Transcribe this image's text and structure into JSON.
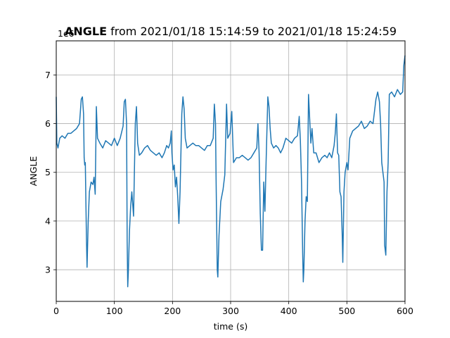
{
  "chart_data": {
    "type": "line",
    "title_bold": "ANGLE",
    "title_rest": " from 2021/01/18 15:14:59 to 2021/01/18 15:24:59",
    "xlabel": "time (s)",
    "ylabel": "ANGLE",
    "y_offset_text": "1e6",
    "xlim": [
      0,
      600
    ],
    "ylim": [
      2350000,
      7700000
    ],
    "x_ticks": [
      0,
      100,
      200,
      300,
      400,
      500,
      600
    ],
    "y_ticks": [
      3,
      4,
      5,
      6,
      7
    ],
    "grid": true,
    "series": [
      {
        "color": "#1f77b4",
        "points": [
          [
            0,
            6550000
          ],
          [
            1,
            5600000
          ],
          [
            3,
            5500000
          ],
          [
            6,
            5700000
          ],
          [
            10,
            5750000
          ],
          [
            15,
            5700000
          ],
          [
            20,
            5800000
          ],
          [
            25,
            5800000
          ],
          [
            30,
            5850000
          ],
          [
            35,
            5900000
          ],
          [
            40,
            6000000
          ],
          [
            43,
            6500000
          ],
          [
            45,
            6550000
          ],
          [
            47,
            6200000
          ],
          [
            48,
            5300000
          ],
          [
            49,
            5150000
          ],
          [
            50,
            5200000
          ],
          [
            51,
            4400000
          ],
          [
            52,
            3600000
          ],
          [
            53,
            3050000
          ],
          [
            55,
            4000000
          ],
          [
            57,
            4600000
          ],
          [
            60,
            4800000
          ],
          [
            63,
            4750000
          ],
          [
            65,
            4900000
          ],
          [
            67,
            4550000
          ],
          [
            69,
            6350000
          ],
          [
            71,
            5700000
          ],
          [
            75,
            5600000
          ],
          [
            80,
            5500000
          ],
          [
            85,
            5650000
          ],
          [
            90,
            5600000
          ],
          [
            95,
            5550000
          ],
          [
            100,
            5700000
          ],
          [
            105,
            5550000
          ],
          [
            110,
            5700000
          ],
          [
            115,
            5950000
          ],
          [
            117,
            6450000
          ],
          [
            119,
            6500000
          ],
          [
            121,
            6000000
          ],
          [
            122,
            3600000
          ],
          [
            123,
            2650000
          ],
          [
            124,
            2950000
          ],
          [
            126,
            3800000
          ],
          [
            128,
            4300000
          ],
          [
            130,
            4600000
          ],
          [
            133,
            4100000
          ],
          [
            136,
            6000000
          ],
          [
            138,
            6350000
          ],
          [
            140,
            5600000
          ],
          [
            143,
            5350000
          ],
          [
            147,
            5400000
          ],
          [
            152,
            5500000
          ],
          [
            157,
            5550000
          ],
          [
            162,
            5450000
          ],
          [
            167,
            5400000
          ],
          [
            172,
            5350000
          ],
          [
            177,
            5400000
          ],
          [
            182,
            5300000
          ],
          [
            186,
            5400000
          ],
          [
            190,
            5550000
          ],
          [
            193,
            5500000
          ],
          [
            196,
            5600000
          ],
          [
            198,
            5850000
          ],
          [
            199,
            5400000
          ],
          [
            201,
            5050000
          ],
          [
            203,
            5150000
          ],
          [
            205,
            4700000
          ],
          [
            207,
            4900000
          ],
          [
            209,
            4500000
          ],
          [
            211,
            3950000
          ],
          [
            213,
            4600000
          ],
          [
            216,
            6200000
          ],
          [
            218,
            6550000
          ],
          [
            220,
            6300000
          ],
          [
            222,
            5700000
          ],
          [
            225,
            5500000
          ],
          [
            230,
            5550000
          ],
          [
            235,
            5600000
          ],
          [
            240,
            5550000
          ],
          [
            245,
            5550000
          ],
          [
            250,
            5500000
          ],
          [
            255,
            5450000
          ],
          [
            260,
            5550000
          ],
          [
            265,
            5550000
          ],
          [
            270,
            5700000
          ],
          [
            272,
            6400000
          ],
          [
            274,
            6000000
          ],
          [
            275,
            4850000
          ],
          [
            277,
            3000000
          ],
          [
            278,
            2850000
          ],
          [
            280,
            3700000
          ],
          [
            283,
            4400000
          ],
          [
            287,
            4650000
          ],
          [
            290,
            4950000
          ],
          [
            293,
            6400000
          ],
          [
            295,
            5700000
          ],
          [
            299,
            5800000
          ],
          [
            302,
            6250000
          ],
          [
            305,
            5200000
          ],
          [
            310,
            5300000
          ],
          [
            315,
            5300000
          ],
          [
            320,
            5350000
          ],
          [
            325,
            5300000
          ],
          [
            330,
            5250000
          ],
          [
            335,
            5300000
          ],
          [
            340,
            5400000
          ],
          [
            345,
            5500000
          ],
          [
            347,
            6000000
          ],
          [
            349,
            5400000
          ],
          [
            351,
            4150000
          ],
          [
            353,
            3400000
          ],
          [
            355,
            3400000
          ],
          [
            357,
            4800000
          ],
          [
            359,
            4200000
          ],
          [
            361,
            5200000
          ],
          [
            364,
            6550000
          ],
          [
            366,
            6350000
          ],
          [
            368,
            5900000
          ],
          [
            370,
            5600000
          ],
          [
            374,
            5500000
          ],
          [
            378,
            5550000
          ],
          [
            382,
            5500000
          ],
          [
            386,
            5400000
          ],
          [
            390,
            5500000
          ],
          [
            395,
            5700000
          ],
          [
            400,
            5650000
          ],
          [
            405,
            5600000
          ],
          [
            410,
            5700000
          ],
          [
            415,
            5750000
          ],
          [
            418,
            6150000
          ],
          [
            420,
            5650000
          ],
          [
            422,
            4800000
          ],
          [
            424,
            3300000
          ],
          [
            425,
            2750000
          ],
          [
            426,
            3000000
          ],
          [
            428,
            4000000
          ],
          [
            430,
            4500000
          ],
          [
            432,
            4400000
          ],
          [
            434,
            6600000
          ],
          [
            436,
            6100000
          ],
          [
            438,
            5600000
          ],
          [
            440,
            5900000
          ],
          [
            443,
            5400000
          ],
          [
            447,
            5400000
          ],
          [
            452,
            5200000
          ],
          [
            457,
            5300000
          ],
          [
            462,
            5350000
          ],
          [
            466,
            5300000
          ],
          [
            470,
            5400000
          ],
          [
            474,
            5300000
          ],
          [
            478,
            5550000
          ],
          [
            480,
            5800000
          ],
          [
            482,
            6200000
          ],
          [
            484,
            5400000
          ],
          [
            486,
            5350000
          ],
          [
            488,
            4600000
          ],
          [
            490,
            4500000
          ],
          [
            492,
            3700000
          ],
          [
            493,
            3150000
          ],
          [
            495,
            4600000
          ],
          [
            497,
            5000000
          ],
          [
            500,
            5200000
          ],
          [
            502,
            5050000
          ],
          [
            505,
            5700000
          ],
          [
            510,
            5850000
          ],
          [
            515,
            5900000
          ],
          [
            520,
            5950000
          ],
          [
            525,
            6050000
          ],
          [
            530,
            5900000
          ],
          [
            535,
            5950000
          ],
          [
            540,
            6050000
          ],
          [
            545,
            6000000
          ],
          [
            550,
            6500000
          ],
          [
            553,
            6650000
          ],
          [
            556,
            6450000
          ],
          [
            558,
            6000000
          ],
          [
            560,
            5200000
          ],
          [
            562,
            5000000
          ],
          [
            564,
            4800000
          ],
          [
            565,
            3500000
          ],
          [
            567,
            3300000
          ],
          [
            569,
            4600000
          ],
          [
            571,
            5200000
          ],
          [
            573,
            6600000
          ],
          [
            577,
            6650000
          ],
          [
            582,
            6550000
          ],
          [
            587,
            6700000
          ],
          [
            592,
            6600000
          ],
          [
            596,
            6650000
          ],
          [
            598,
            7200000
          ],
          [
            600,
            7400000
          ]
        ]
      }
    ]
  }
}
